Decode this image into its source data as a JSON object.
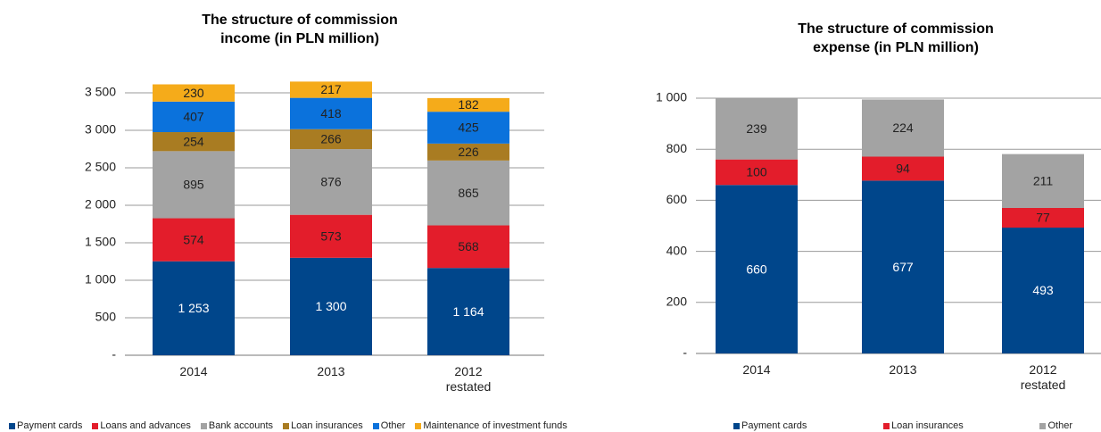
{
  "chart_data": [
    {
      "type": "bar",
      "stacked": true,
      "title": "The structure of commission income (in PLN million)",
      "categories": [
        "2014",
        "2013",
        "2012 restated"
      ],
      "series": [
        {
          "name": "Payment cards",
          "color": "#00468b",
          "values": [
            1253,
            1300,
            1164
          ],
          "value_labels": [
            "1 253",
            "1 300",
            "1 164"
          ]
        },
        {
          "name": "Loans and advances",
          "color": "#e31d2b",
          "values": [
            574,
            573,
            568
          ]
        },
        {
          "name": "Bank accounts",
          "color": "#a3a3a3",
          "values": [
            895,
            876,
            865
          ]
        },
        {
          "name": "Loan insurances",
          "color": "#a97c22",
          "values": [
            254,
            266,
            226
          ]
        },
        {
          "name": "Other",
          "color": "#0b72dc",
          "values": [
            407,
            418,
            425
          ]
        },
        {
          "name": "Maintenance of investment funds",
          "color": "#f5ab1a",
          "values": [
            230,
            217,
            182
          ]
        }
      ],
      "ylim": [
        0,
        3700
      ],
      "yticks": [
        {
          "value": 0,
          "label": "-"
        },
        500,
        {
          "value": 1000,
          "label": "1 000"
        },
        {
          "value": 1500,
          "label": "1 500"
        },
        {
          "value": 2000,
          "label": "2 000"
        },
        {
          "value": 2500,
          "label": "2 500"
        },
        {
          "value": 3000,
          "label": "3 000"
        },
        {
          "value": 3500,
          "label": "3 500"
        }
      ],
      "grid": true
    },
    {
      "type": "bar",
      "stacked": true,
      "title": "The structure of commission expense (in PLN million)",
      "categories": [
        "2014",
        "2013",
        "2012 restated"
      ],
      "series": [
        {
          "name": "Payment cards",
          "color": "#00468b",
          "values": [
            660,
            677,
            493
          ]
        },
        {
          "name": "Loan insurances",
          "color": "#e31d2b",
          "values": [
            100,
            94,
            77
          ]
        },
        {
          "name": "Other",
          "color": "#a3a3a3",
          "values": [
            239,
            224,
            211
          ]
        }
      ],
      "ylim": [
        0,
        1000
      ],
      "yticks": [
        {
          "value": 0,
          "label": "-"
        },
        200,
        400,
        600,
        800,
        {
          "value": 1000,
          "label": "1 000"
        }
      ],
      "grid": true
    }
  ]
}
